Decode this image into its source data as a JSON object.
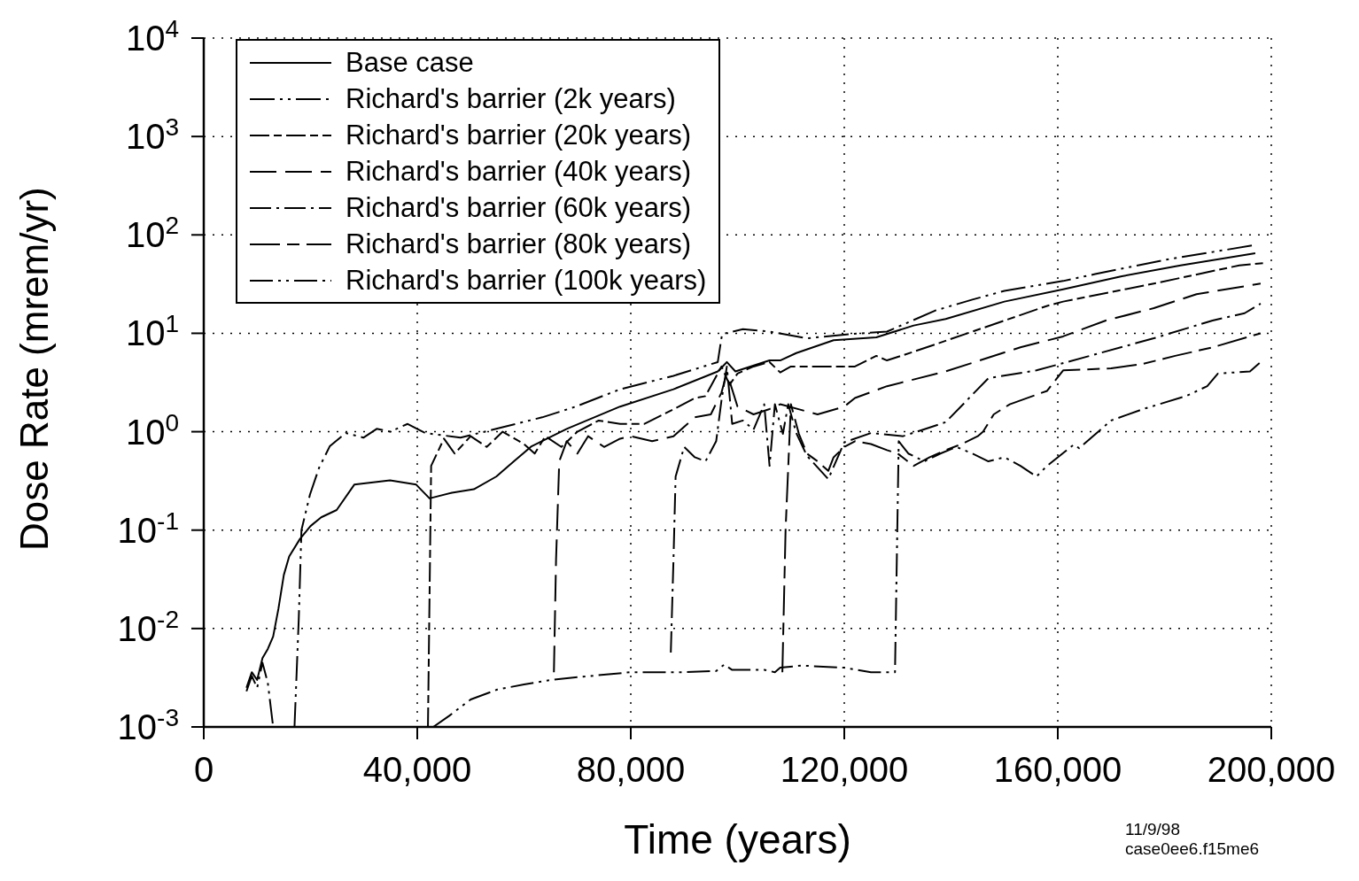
{
  "chart_data": {
    "type": "line",
    "xlabel": "Time (years)",
    "ylabel": "Dose Rate (mrem/yr)",
    "xlim": [
      0,
      200000
    ],
    "xticks": [
      0,
      {
        "value": 40000,
        "label": "40,000"
      },
      {
        "value": 80000,
        "label": "80,000"
      },
      {
        "value": 120000,
        "label": "120,000"
      },
      {
        "value": 160000,
        "label": "160,000"
      },
      {
        "value": 200000,
        "label": "200,000"
      }
    ],
    "ylim": [
      0.001,
      10000
    ],
    "yticks": [
      {
        "value": 0.001,
        "label": "10$^{-3}$"
      },
      {
        "value": 0.01,
        "label": "10$^{-2}$"
      },
      {
        "value": 0.1,
        "label": "10$^{-1}$"
      },
      {
        "value": 1,
        "label": "10$^{0}$"
      },
      {
        "value": 10,
        "label": "10$^{1}$"
      },
      {
        "value": 100,
        "label": "10$^{2}$"
      },
      {
        "value": 1000,
        "label": "10$^{3}$"
      },
      {
        "value": 10000,
        "label": "10$^{4}$"
      }
    ],
    "log": "y",
    "grid": true,
    "legend": "top left",
    "marker": "none",
    "annotations": [
      "11/9/98",
      "case0ee6.f15me6"
    ],
    "series": [
      {
        "name": "Base case",
        "color": "#000000",
        "line_style": "solid",
        "x": [
          8000,
          9000,
          10000,
          11000,
          12000,
          13000,
          14000,
          15000,
          16000,
          18000,
          20000,
          22000,
          24900,
          28200,
          34900,
          39800,
          42300,
          46500,
          50600,
          54800,
          58100,
          61400,
          68000,
          78000,
          88000,
          96300,
          98000,
          99600,
          106000,
          108000,
          111000,
          118000,
          126000,
          133000,
          139000,
          150000,
          161000,
          172000,
          183000,
          197000
        ],
        "values": [
          0.0025,
          0.0036,
          0.003,
          0.005,
          0.0062,
          0.0083,
          0.016,
          0.035,
          0.054,
          0.081,
          0.11,
          0.135,
          0.16,
          0.29,
          0.32,
          0.29,
          0.21,
          0.24,
          0.26,
          0.35,
          0.5,
          0.71,
          1.07,
          1.8,
          2.7,
          4.1,
          5.1,
          4.1,
          5.3,
          5.3,
          6.3,
          8.5,
          9.1,
          12,
          14,
          21,
          28,
          38,
          49,
          65
        ]
      },
      {
        "name": "Richard's barrier (2k years)",
        "color": "#000000",
        "line_style": "dashed",
        "x": [
          8000,
          9000,
          10000,
          11000,
          12000,
          13000,
          15000,
          17000,
          17800,
          18300,
          19900,
          21600,
          23600,
          26600,
          29900,
          32400,
          34900,
          38200,
          41500,
          48100,
          54800,
          63400,
          69700,
          78000,
          88000,
          96300,
          97100,
          101000,
          106000,
          113000,
          121000,
          128000,
          137000,
          144000,
          150000,
          161000,
          167000,
          175000,
          181000,
          189000,
          197000
        ],
        "values": [
          0.0023,
          0.0033,
          0.0025,
          0.0045,
          0.0028,
          0.001,
          null,
          0.001,
          0.0126,
          0.1,
          0.23,
          0.43,
          0.71,
          0.97,
          0.87,
          1.07,
          1.0,
          1.2,
          0.97,
          0.87,
          1.07,
          1.4,
          1.8,
          2.7,
          3.7,
          5.1,
          9.8,
          11,
          10.4,
          8.9,
          9.8,
          10.4,
          17,
          22,
          27,
          34,
          40,
          49,
          57,
          67,
          79
        ]
      },
      {
        "name": "Richard's barrier (20k years)",
        "color": "#000000",
        "line_style": "dashed",
        "x": [
          42000,
          42600,
          45000,
          47000,
          50000,
          53000,
          56000,
          60000,
          62000,
          64000,
          67000,
          70000,
          74000,
          78000,
          82500,
          89000,
          92000,
          94000,
          97000,
          98500,
          100000,
          103000,
          106000,
          108000,
          110000,
          116000,
          122000,
          126000,
          128000,
          133000,
          137000,
          158000,
          161000,
          178000,
          194000,
          199000
        ],
        "values": [
          0.001,
          0.45,
          0.85,
          0.6,
          0.9,
          0.7,
          1.0,
          0.75,
          0.6,
          0.9,
          0.7,
          1.0,
          1.3,
          1.2,
          1.2,
          1.8,
          2.2,
          2.3,
          4.6,
          3.0,
          3.9,
          4.6,
          5.1,
          4.0,
          4.6,
          4.6,
          4.6,
          5.9,
          5.3,
          6.5,
          7.7,
          19,
          21,
          32,
          49,
          52
        ]
      },
      {
        "name": "Richard's barrier (40k years)",
        "color": "#000000",
        "line_style": "dashed",
        "x": [
          65600,
          66000,
          66600,
          68000,
          70000,
          72000,
          75000,
          78000,
          80000,
          84000,
          88000,
          92000,
          95000,
          97000,
          98000,
          100000,
          103000,
          106000,
          108000,
          115000,
          120000,
          122000,
          128000,
          139000,
          153000,
          161000,
          169000,
          178000,
          186000,
          198000
        ],
        "values": [
          0.0036,
          0.05,
          0.5,
          0.8,
          0.6,
          0.9,
          0.7,
          0.85,
          0.9,
          0.8,
          0.9,
          1.4,
          1.5,
          2.5,
          4.0,
          1.8,
          1.5,
          1.7,
          1.9,
          1.5,
          1.8,
          2.2,
          2.9,
          4.1,
          7.2,
          9.3,
          13.5,
          18,
          25,
          32
        ]
      },
      {
        "name": "Richard's barrier (60k years)",
        "color": "#000000",
        "line_style": "dashed",
        "x": [
          87500,
          88000,
          88400,
          90000,
          92000,
          94000,
          96000,
          97000,
          98000,
          99000,
          101000,
          103000,
          105000,
          106000,
          107000,
          108500,
          109500,
          111000,
          113000,
          117000,
          120000,
          125000,
          131000,
          139000,
          147000,
          156000,
          166000,
          178000,
          189000,
          195000,
          198000
        ],
        "values": [
          0.0057,
          0.05,
          0.35,
          0.7,
          0.55,
          0.5,
          0.8,
          2.1,
          4.6,
          1.2,
          1.3,
          1.05,
          1.9,
          0.45,
          1.9,
          0.95,
          1.9,
          0.97,
          0.57,
          0.33,
          0.78,
          0.97,
          0.9,
          1.25,
          3.5,
          4.2,
          5.9,
          8.9,
          13.5,
          16,
          20
        ]
      },
      {
        "name": "Richard's barrier (80k years)",
        "color": "#000000",
        "line_style": "dashed",
        "x": [
          108400,
          109000,
          110000,
          111500,
          113000,
          115000,
          117000,
          118000,
          120000,
          122000,
          125000,
          128000,
          130000,
          133000,
          136000,
          139000,
          142000,
          145000,
          146000,
          148000,
          151000,
          158000,
          161000,
          170000,
          176000,
          182000,
          189000,
          198000
        ],
        "values": [
          0.0036,
          0.1,
          1.9,
          0.95,
          0.6,
          0.5,
          0.4,
          0.55,
          0.7,
          0.8,
          0.75,
          0.65,
          0.6,
          0.45,
          0.55,
          0.65,
          0.75,
          0.9,
          1.0,
          1.5,
          1.9,
          2.6,
          4.2,
          4.4,
          4.9,
          5.9,
          7.2,
          10
        ]
      },
      {
        "name": "Richard's barrier (100k years)",
        "color": "#000000",
        "line_style": "dashed",
        "x": [
          43000,
          46000,
          50000,
          55000,
          60000,
          65000,
          70000,
          80000,
          90000,
          96000,
          97500,
          99000,
          105000,
          107000,
          108000,
          112000,
          120000,
          125000,
          129500,
          130200,
          132000,
          135000,
          138000,
          141000,
          144000,
          147000,
          150000,
          153000,
          156000,
          158000,
          163000,
          164000,
          170000,
          176000,
          184000,
          188000,
          190000,
          196000,
          198000
        ],
        "values": [
          0.001,
          0.0013,
          0.0019,
          0.0024,
          0.0027,
          0.003,
          0.0032,
          0.0036,
          0.0036,
          0.0037,
          0.0043,
          0.0038,
          0.0038,
          0.0036,
          0.004,
          0.0042,
          0.004,
          0.0036,
          0.0036,
          0.8,
          0.6,
          0.5,
          0.6,
          0.7,
          0.6,
          0.5,
          0.55,
          0.45,
          0.35,
          0.45,
          0.74,
          0.68,
          1.3,
          1.7,
          2.3,
          2.9,
          3.9,
          4.1,
          5.1
        ]
      }
    ]
  }
}
